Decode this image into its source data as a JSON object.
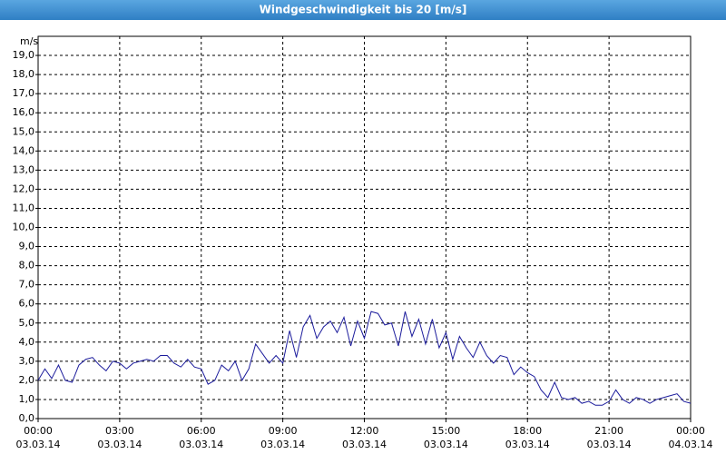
{
  "chart_data": {
    "type": "line",
    "title": "Windgeschwindigkeit bis 20 [m/s]",
    "y_label": "m/s",
    "x": [
      0,
      0.25,
      0.5,
      0.75,
      1,
      1.25,
      1.5,
      1.75,
      2,
      2.25,
      2.5,
      2.75,
      3,
      3.25,
      3.5,
      3.75,
      4,
      4.25,
      4.5,
      4.75,
      5,
      5.25,
      5.5,
      5.75,
      6,
      6.25,
      6.5,
      6.75,
      7,
      7.25,
      7.5,
      7.75,
      8,
      8.25,
      8.5,
      8.75,
      9,
      9.25,
      9.5,
      9.75,
      10,
      10.25,
      10.5,
      10.75,
      11,
      11.25,
      11.5,
      11.75,
      12,
      12.25,
      12.5,
      12.75,
      13,
      13.25,
      13.5,
      13.75,
      14,
      14.25,
      14.5,
      14.75,
      15,
      15.25,
      15.5,
      15.75,
      16,
      16.25,
      16.5,
      16.75,
      17,
      17.25,
      17.5,
      17.75,
      18,
      18.25,
      18.5,
      18.75,
      19,
      19.25,
      19.5,
      19.75,
      20,
      20.25,
      20.5,
      20.75,
      21,
      21.25,
      21.5,
      21.75,
      22,
      22.25,
      22.5,
      22.75,
      23,
      23.25,
      23.5,
      23.75,
      24
    ],
    "values": [
      2.0,
      2.6,
      2.1,
      2.8,
      2.0,
      1.9,
      2.8,
      3.1,
      3.2,
      2.8,
      2.5,
      3.0,
      2.9,
      2.6,
      2.9,
      3.0,
      3.1,
      3.0,
      3.3,
      3.3,
      2.9,
      2.7,
      3.1,
      2.7,
      2.6,
      1.8,
      2.0,
      2.8,
      2.5,
      3.0,
      2.0,
      2.6,
      3.9,
      3.4,
      2.9,
      3.3,
      2.9,
      4.6,
      3.2,
      4.8,
      5.4,
      4.2,
      4.8,
      5.1,
      4.5,
      5.3,
      3.8,
      5.1,
      4.2,
      5.6,
      5.5,
      4.9,
      5.0,
      3.8,
      5.6,
      4.3,
      5.2,
      3.9,
      5.2,
      3.7,
      4.5,
      3.1,
      4.3,
      3.7,
      3.2,
      4.0,
      3.3,
      2.9,
      3.3,
      3.2,
      2.3,
      2.7,
      2.4,
      2.2,
      1.5,
      1.1,
      1.9,
      1.1,
      1.0,
      1.1,
      0.8,
      0.9,
      0.7,
      0.7,
      0.9,
      1.5,
      1.0,
      0.8,
      1.1,
      1.0,
      0.8,
      1.0,
      1.1,
      1.2,
      1.3,
      0.9,
      0.8
    ],
    "color": "#1c1c9c",
    "xlim": [
      0,
      24
    ],
    "xticks": [
      {
        "value": 0,
        "label": [
          "00:00",
          "03.03.14"
        ]
      },
      {
        "value": 3,
        "label": [
          "03:00",
          "03.03.14"
        ]
      },
      {
        "value": 6,
        "label": [
          "06:00",
          "03.03.14"
        ]
      },
      {
        "value": 9,
        "label": [
          "09:00",
          "03.03.14"
        ]
      },
      {
        "value": 12,
        "label": [
          "12:00",
          "03.03.14"
        ]
      },
      {
        "value": 15,
        "label": [
          "15:00",
          "03.03.14"
        ]
      },
      {
        "value": 18,
        "label": [
          "18:00",
          "03.03.14"
        ]
      },
      {
        "value": 21,
        "label": [
          "21:00",
          "03.03.14"
        ]
      },
      {
        "value": 24,
        "label": [
          "00:00",
          "04.03.14"
        ]
      }
    ],
    "ylim": [
      0,
      20
    ],
    "yticks": [
      {
        "value": 0,
        "label": "0,0"
      },
      {
        "value": 1,
        "label": "1,0"
      },
      {
        "value": 2,
        "label": "2,0"
      },
      {
        "value": 3,
        "label": "3,0"
      },
      {
        "value": 4,
        "label": "4,0"
      },
      {
        "value": 5,
        "label": "5,0"
      },
      {
        "value": 6,
        "label": "6,0"
      },
      {
        "value": 7,
        "label": "7,0"
      },
      {
        "value": 8,
        "label": "8,0"
      },
      {
        "value": 9,
        "label": "9,0"
      },
      {
        "value": 10,
        "label": "10,0"
      },
      {
        "value": 11,
        "label": "11,0"
      },
      {
        "value": 12,
        "label": "12,0"
      },
      {
        "value": 13,
        "label": "13,0"
      },
      {
        "value": 14,
        "label": "14,0"
      },
      {
        "value": 15,
        "label": "15,0"
      },
      {
        "value": 16,
        "label": "16,0"
      },
      {
        "value": 17,
        "label": "17,0"
      },
      {
        "value": 18,
        "label": "18,0"
      },
      {
        "value": 19,
        "label": "19,0"
      }
    ],
    "grid": true
  }
}
